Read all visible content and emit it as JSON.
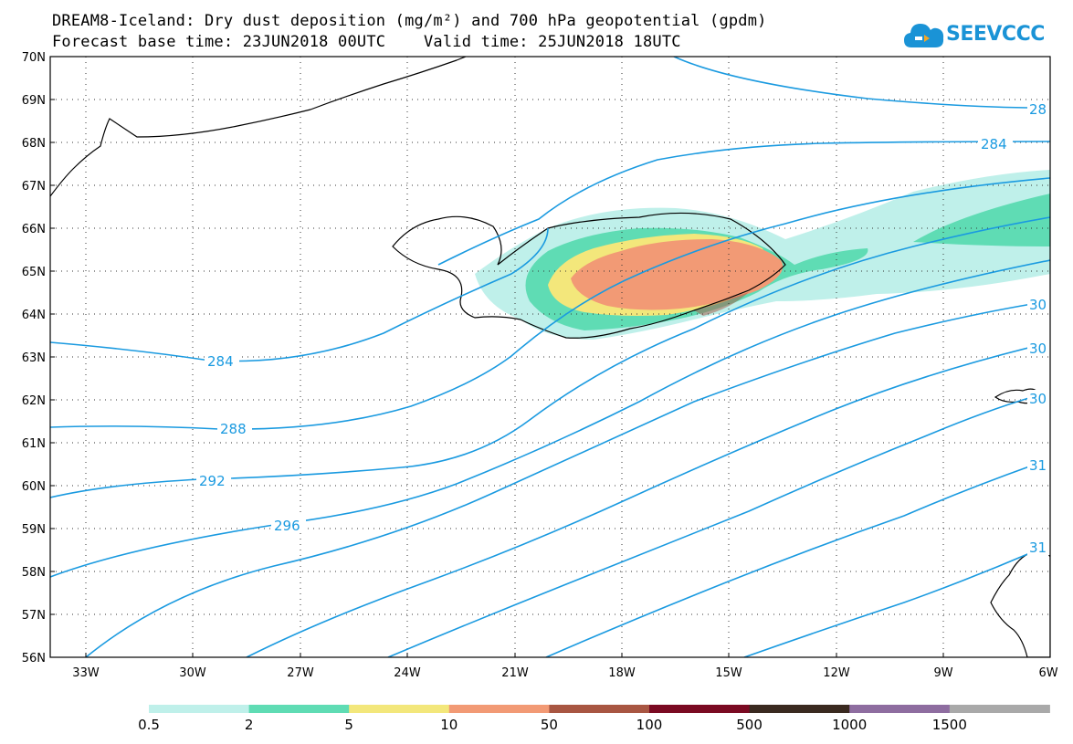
{
  "header": {
    "title_line1": "DREAM8-Iceland: Dry dust deposition (mg/m²) and 700 hPa geopotential (gpdm)",
    "title_line2": "Forecast base time: 23JUN2018 00UTC    Valid time: 25JUN2018 18UTC"
  },
  "logo": {
    "text": "SEEVCCC",
    "icon": "cloud-icon",
    "color": "#1a93d6"
  },
  "map": {
    "lat_labels": [
      "70N",
      "69N",
      "68N",
      "67N",
      "66N",
      "65N",
      "64N",
      "63N",
      "62N",
      "61N",
      "60N",
      "59N",
      "58N",
      "57N",
      "56N"
    ],
    "lon_labels": [
      "33W",
      "30W",
      "27W",
      "24W",
      "21W",
      "18W",
      "15W",
      "12W",
      "9W",
      "6W"
    ],
    "contour_color": "#1a9ae0",
    "contour_labels": [
      "284",
      "284",
      "288",
      "292",
      "296",
      "28",
      "30",
      "30",
      "30",
      "31",
      "31"
    ]
  },
  "legend": {
    "colors": [
      "#bff0ea",
      "#5fdcb4",
      "#f3e77b",
      "#f29a75",
      "#a85642",
      "#7a0a22",
      "#3a2a20",
      "#8e6da0",
      "#a9a9a9"
    ],
    "labels": [
      "0.5",
      "2",
      "5",
      "10",
      "50",
      "100",
      "500",
      "1000",
      "1500"
    ]
  }
}
